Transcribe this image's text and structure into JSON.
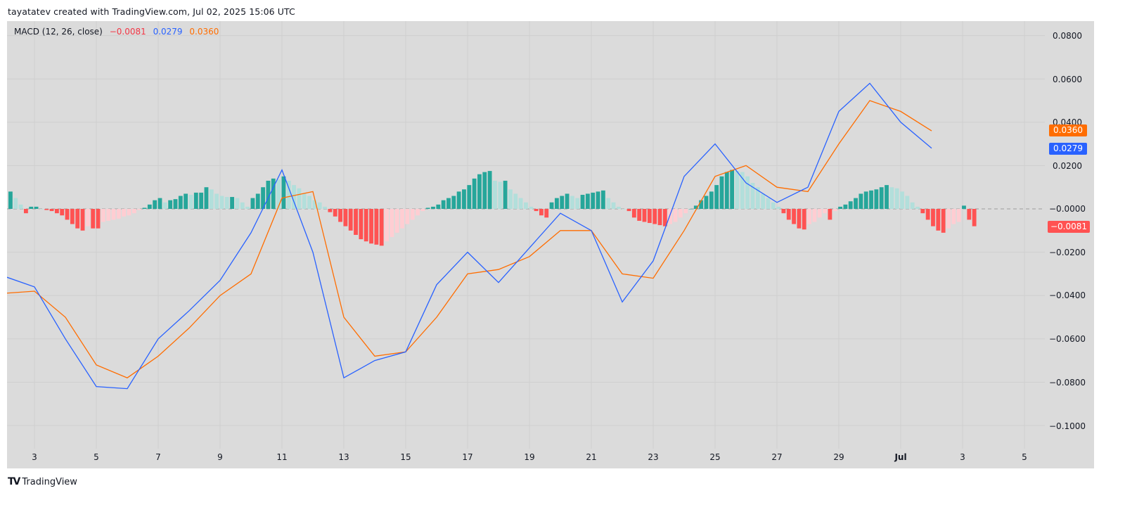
{
  "header": {
    "caption": "tayatatev created with TradingView.com, Jul 02, 2025 15:06 UTC"
  },
  "legend": {
    "name": "MACD (12, 26, close)",
    "histogram_value": "−0.0081",
    "macd_value": "0.0279",
    "signal_value": "0.0360"
  },
  "colors": {
    "background": "#dbdbdb",
    "macd_line": "#2962ff",
    "signal_line": "#ff6d00",
    "hist_pos_strong": "#26a69a",
    "hist_pos_weak": "#b2dfdb",
    "hist_neg_strong": "#ff5252",
    "hist_neg_weak": "#ffcdd2",
    "grid": "#cfcfcf"
  },
  "price_axis": {
    "labels": [
      "0.0800",
      "0.0600",
      "0.0400",
      "0.0200",
      "−0.0000",
      "−0.0200",
      "−0.0400",
      "−0.0600",
      "−0.0800",
      "−0.1000"
    ],
    "badges": {
      "signal": "0.0360",
      "macd": "0.0279",
      "histogram": "−0.0081"
    }
  },
  "time_axis": {
    "labels": [
      "3",
      "5",
      "7",
      "9",
      "11",
      "13",
      "15",
      "17",
      "19",
      "21",
      "23",
      "25",
      "27",
      "29",
      "Jul",
      "3",
      "5"
    ]
  },
  "footer": {
    "brand": "TradingView"
  },
  "chart_data": {
    "type": "line",
    "title": "MACD (12, 26, close)",
    "xlabel": "",
    "ylabel": "",
    "ylim": [
      -0.11,
      0.085
    ],
    "grid": true,
    "legend_position": "top-left",
    "x_ticks": [
      "3",
      "5",
      "7",
      "9",
      "11",
      "13",
      "15",
      "17",
      "19",
      "21",
      "23",
      "25",
      "27",
      "29",
      "Jul",
      "3",
      "5"
    ],
    "y_ticks": [
      0.08,
      0.06,
      0.04,
      0.02,
      0.0,
      -0.02,
      -0.04,
      -0.06,
      -0.08,
      -0.1
    ],
    "last_values": {
      "histogram": -0.0081,
      "macd": 0.0279,
      "signal": 0.036
    },
    "series": [
      {
        "name": "MACD",
        "color": "#2962ff",
        "x": [
          "Jun 2",
          "Jun 3",
          "Jun 4",
          "Jun 5",
          "Jun 6",
          "Jun 7",
          "Jun 8",
          "Jun 9",
          "Jun 10",
          "Jun 11",
          "Jun 12",
          "Jun 13",
          "Jun 14",
          "Jun 15",
          "Jun 16",
          "Jun 17",
          "Jun 18",
          "Jun 19",
          "Jun 20",
          "Jun 21",
          "Jun 22",
          "Jun 23",
          "Jun 24",
          "Jun 25",
          "Jun 26",
          "Jun 27",
          "Jun 28",
          "Jun 29",
          "Jun 30",
          "Jul 1",
          "Jul 2"
        ],
        "values": [
          -0.031,
          -0.036,
          -0.06,
          -0.082,
          -0.083,
          -0.06,
          -0.047,
          -0.033,
          -0.011,
          0.018,
          -0.02,
          -0.078,
          -0.07,
          -0.066,
          -0.035,
          -0.02,
          -0.034,
          -0.018,
          -0.002,
          -0.01,
          -0.043,
          -0.024,
          0.015,
          0.03,
          0.012,
          0.003,
          0.01,
          0.045,
          0.058,
          0.04,
          0.028
        ]
      },
      {
        "name": "Signal",
        "color": "#ff6d00",
        "x": [
          "Jun 2",
          "Jun 3",
          "Jun 4",
          "Jun 5",
          "Jun 6",
          "Jun 7",
          "Jun 8",
          "Jun 9",
          "Jun 10",
          "Jun 11",
          "Jun 12",
          "Jun 13",
          "Jun 14",
          "Jun 15",
          "Jun 16",
          "Jun 17",
          "Jun 18",
          "Jun 19",
          "Jun 20",
          "Jun 21",
          "Jun 22",
          "Jun 23",
          "Jun 24",
          "Jun 25",
          "Jun 26",
          "Jun 27",
          "Jun 28",
          "Jun 29",
          "Jun 30",
          "Jul 1",
          "Jul 2"
        ],
        "values": [
          -0.039,
          -0.038,
          -0.05,
          -0.072,
          -0.078,
          -0.068,
          -0.055,
          -0.04,
          -0.03,
          0.005,
          0.008,
          -0.05,
          -0.068,
          -0.066,
          -0.05,
          -0.03,
          -0.028,
          -0.022,
          -0.01,
          -0.01,
          -0.03,
          -0.032,
          -0.01,
          0.015,
          0.02,
          0.01,
          0.008,
          0.03,
          0.05,
          0.045,
          0.036
        ]
      },
      {
        "name": "Histogram",
        "type": "bar",
        "colors": {
          "pos_rising": "#26a69a",
          "pos_falling": "#b2dfdb",
          "neg_falling": "#ff5252",
          "neg_rising": "#ffcdd2"
        },
        "values_x1000": [
          8,
          5,
          2,
          -2,
          1,
          1,
          0,
          -0.5,
          -1,
          -2,
          -3,
          -5,
          -7,
          -9,
          -10,
          -8,
          -9,
          -9,
          -6,
          -5.5,
          -5,
          -4.5,
          -3.5,
          -3,
          -2,
          -0.5,
          0.5,
          2,
          4,
          5,
          3,
          4,
          4.5,
          6,
          7,
          6.5,
          7.5,
          7.5,
          10,
          9,
          7,
          6,
          5.5,
          5.5,
          5,
          3,
          1,
          5,
          7,
          10,
          13,
          14,
          13.5,
          15,
          13,
          11,
          9.5,
          7,
          6,
          4,
          3,
          1,
          -1.5,
          -3.5,
          -6,
          -8,
          -10,
          -12,
          -14,
          -15,
          -16,
          -16.5,
          -17,
          -15,
          -13,
          -11,
          -9,
          -7,
          -5,
          -3,
          -1,
          0.5,
          1,
          2,
          4,
          5,
          6,
          8,
          9,
          11,
          14,
          16,
          17,
          17.5,
          13,
          12.5,
          13,
          9,
          7,
          5,
          3,
          1,
          -1,
          -3,
          -4,
          3,
          5,
          6,
          7,
          6,
          5,
          6.5,
          7,
          7.5,
          8,
          8.5,
          5,
          3,
          1,
          0,
          -1,
          -4,
          -5.5,
          -6,
          -6.5,
          -7,
          -7.5,
          -8,
          -7,
          -6,
          -4,
          -2,
          0,
          1.5,
          4,
          6,
          8,
          11,
          15,
          17,
          18,
          17.5,
          17,
          15,
          12,
          10,
          7,
          5,
          3,
          1,
          -2,
          -5,
          -7,
          -9,
          -9.5,
          -7,
          -6,
          -4,
          -2,
          -5,
          -1,
          1,
          2,
          3.5,
          5,
          7,
          8,
          8.5,
          9,
          10,
          11,
          10,
          9.5,
          8,
          6,
          3,
          1,
          -2,
          -5,
          -8,
          -10,
          -11,
          -9,
          -7,
          -6,
          1.5,
          -5,
          -8
        ]
      }
    ]
  }
}
